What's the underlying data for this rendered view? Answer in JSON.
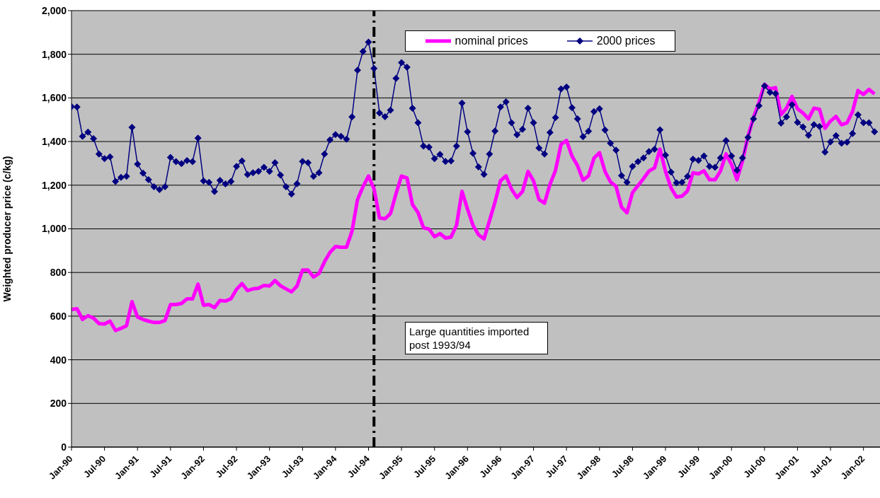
{
  "chart_data": {
    "type": "line",
    "ylabel": "Weighted producer price (c/kg)",
    "x": [
      "1990-01",
      "1990-02",
      "1990-03",
      "1990-04",
      "1990-05",
      "1990-06",
      "1990-07",
      "1990-08",
      "1990-09",
      "1990-10",
      "1990-11",
      "1990-12",
      "1991-01",
      "1991-02",
      "1991-03",
      "1991-04",
      "1991-05",
      "1991-06",
      "1991-07",
      "1991-08",
      "1991-09",
      "1991-10",
      "1991-11",
      "1991-12",
      "1992-01",
      "1992-02",
      "1992-03",
      "1992-04",
      "1992-05",
      "1992-06",
      "1992-07",
      "1992-08",
      "1992-09",
      "1992-10",
      "1992-11",
      "1992-12",
      "1993-01",
      "1993-02",
      "1993-03",
      "1993-04",
      "1993-05",
      "1993-06",
      "1993-07",
      "1993-08",
      "1993-09",
      "1993-10",
      "1993-11",
      "1993-12",
      "1994-01",
      "1994-02",
      "1994-03",
      "1994-04",
      "1994-05",
      "1994-06",
      "1994-07",
      "1994-08",
      "1994-09",
      "1994-10",
      "1994-11",
      "1994-12",
      "1995-01",
      "1995-02",
      "1995-03",
      "1995-04",
      "1995-05",
      "1995-06",
      "1995-07",
      "1995-08",
      "1995-09",
      "1995-10",
      "1995-11",
      "1995-12",
      "1996-01",
      "1996-02",
      "1996-03",
      "1996-04",
      "1996-05",
      "1996-06",
      "1996-07",
      "1996-08",
      "1996-09",
      "1996-10",
      "1996-11",
      "1996-12",
      "1997-01",
      "1997-02",
      "1997-03",
      "1997-04",
      "1997-05",
      "1997-06",
      "1997-07",
      "1997-08",
      "1997-09",
      "1997-10",
      "1997-11",
      "1997-12",
      "1998-01",
      "1998-02",
      "1998-03",
      "1998-04",
      "1998-05",
      "1998-06",
      "1998-07",
      "1998-08",
      "1998-09",
      "1998-10",
      "1998-11",
      "1998-12",
      "1999-01",
      "1999-02",
      "1999-03",
      "1999-04",
      "1999-05",
      "1999-06",
      "1999-07",
      "1999-08",
      "1999-09",
      "1999-10",
      "1999-11",
      "1999-12",
      "2000-01",
      "2000-02",
      "2000-03",
      "2000-04",
      "2000-05",
      "2000-06",
      "2000-07",
      "2000-08",
      "2000-09",
      "2000-10",
      "2000-11",
      "2000-12",
      "2001-01",
      "2001-02",
      "2001-03",
      "2001-04",
      "2001-05",
      "2001-06",
      "2001-07",
      "2001-08",
      "2001-09",
      "2001-10",
      "2001-11",
      "2001-12",
      "2002-01",
      "2002-02",
      "2002-03"
    ],
    "series": [
      {
        "name": "nominal prices",
        "color": "#ff00ff",
        "marker": "none",
        "values": [
          630,
          634,
          585,
          602,
          591,
          566,
          564,
          577,
          534,
          544,
          556,
          666,
          596,
          585,
          577,
          571,
          571,
          580,
          653,
          653,
          658,
          679,
          679,
          747,
          650,
          653,
          639,
          672,
          669,
          680,
          723,
          749,
          717,
          725,
          728,
          741,
          738,
          763,
          739,
          725,
          711,
          738,
          811,
          811,
          779,
          795,
          849,
          892,
          919,
          916,
          916,
          989,
          1134,
          1193,
          1242,
          1183,
          1050,
          1046,
          1070,
          1161,
          1242,
          1233,
          1111,
          1075,
          1005,
          999,
          964,
          978,
          958,
          962,
          1016,
          1172,
          1091,
          1016,
          973,
          954,
          1037,
          1123,
          1220,
          1243,
          1182,
          1144,
          1171,
          1263,
          1220,
          1134,
          1118,
          1204,
          1268,
          1387,
          1405,
          1333,
          1290,
          1223,
          1243,
          1324,
          1349,
          1263,
          1215,
          1195,
          1100,
          1074,
          1166,
          1198,
          1230,
          1265,
          1279,
          1365,
          1263,
          1188,
          1146,
          1150,
          1174,
          1257,
          1252,
          1266,
          1225,
          1225,
          1265,
          1343,
          1295,
          1225,
          1311,
          1424,
          1510,
          1580,
          1662,
          1641,
          1647,
          1523,
          1553,
          1607,
          1550,
          1531,
          1504,
          1553,
          1548,
          1461,
          1494,
          1515,
          1477,
          1486,
          1537,
          1634,
          1616,
          1639,
          1618
        ]
      },
      {
        "name": "2000 prices",
        "color": "#000080",
        "marker": "diamond",
        "values": [
          1560,
          1558,
          1424,
          1443,
          1413,
          1343,
          1322,
          1330,
          1217,
          1236,
          1241,
          1465,
          1297,
          1255,
          1225,
          1193,
          1180,
          1193,
          1327,
          1308,
          1299,
          1313,
          1308,
          1416,
          1220,
          1213,
          1171,
          1222,
          1206,
          1217,
          1286,
          1311,
          1249,
          1257,
          1263,
          1282,
          1263,
          1303,
          1246,
          1193,
          1160,
          1207,
          1309,
          1303,
          1241,
          1257,
          1343,
          1408,
          1432,
          1424,
          1411,
          1513,
          1727,
          1813,
          1856,
          1735,
          1531,
          1514,
          1544,
          1690,
          1762,
          1741,
          1553,
          1486,
          1379,
          1374,
          1322,
          1341,
          1309,
          1311,
          1379,
          1576,
          1445,
          1346,
          1284,
          1250,
          1343,
          1448,
          1558,
          1582,
          1486,
          1431,
          1456,
          1553,
          1486,
          1370,
          1343,
          1442,
          1510,
          1641,
          1650,
          1555,
          1504,
          1422,
          1447,
          1537,
          1550,
          1453,
          1392,
          1361,
          1244,
          1213,
          1286,
          1308,
          1325,
          1354,
          1365,
          1454,
          1338,
          1260,
          1211,
          1213,
          1241,
          1319,
          1314,
          1334,
          1286,
          1282,
          1325,
          1404,
          1334,
          1268,
          1325,
          1419,
          1504,
          1564,
          1655,
          1626,
          1620,
          1485,
          1513,
          1569,
          1488,
          1467,
          1429,
          1477,
          1469,
          1352,
          1399,
          1427,
          1392,
          1397,
          1437,
          1523,
          1486,
          1486,
          1445
        ]
      }
    ],
    "xlim": [
      "1990-01",
      "2002-04"
    ],
    "xticks": [
      {
        "value": "1990-01",
        "label": "Jan-90"
      },
      {
        "value": "1990-07",
        "label": "Jul-90"
      },
      {
        "value": "1991-01",
        "label": "Jan-91"
      },
      {
        "value": "1991-07",
        "label": "Jul-91"
      },
      {
        "value": "1992-01",
        "label": "Jan-92"
      },
      {
        "value": "1992-07",
        "label": "Jul-92"
      },
      {
        "value": "1993-01",
        "label": "Jan-93"
      },
      {
        "value": "1993-07",
        "label": "Jul-93"
      },
      {
        "value": "1994-01",
        "label": "Jan-94"
      },
      {
        "value": "1994-07",
        "label": "Jul-94"
      },
      {
        "value": "1995-01",
        "label": "Jan-95"
      },
      {
        "value": "1995-07",
        "label": "Jul-95"
      },
      {
        "value": "1996-01",
        "label": "Jan-96"
      },
      {
        "value": "1996-07",
        "label": "Jul-96"
      },
      {
        "value": "1997-01",
        "label": "Jan-97"
      },
      {
        "value": "1997-07",
        "label": "Jul-97"
      },
      {
        "value": "1998-01",
        "label": "Jan-98"
      },
      {
        "value": "1998-07",
        "label": "Jul-98"
      },
      {
        "value": "1999-01",
        "label": "Jan-99"
      },
      {
        "value": "1999-07",
        "label": "Jul-99"
      },
      {
        "value": "2000-01",
        "label": "Jan-00"
      },
      {
        "value": "2000-07",
        "label": "Jul-00"
      },
      {
        "value": "2001-01",
        "label": "Jan-01"
      },
      {
        "value": "2001-07",
        "label": "Jul-01"
      },
      {
        "value": "2002-01",
        "label": "Jan-02"
      }
    ],
    "ylim": [
      0,
      2000
    ],
    "yticks": [
      0,
      200,
      400,
      600,
      800,
      {
        "value": 1000,
        "label": "1,000"
      },
      {
        "value": 1200,
        "label": "1,200"
      },
      {
        "value": 1400,
        "label": "1,400"
      },
      {
        "value": 1600,
        "label": "1,600"
      },
      {
        "value": 1800,
        "label": "1,800"
      },
      {
        "value": 2000,
        "label": "2,000"
      }
    ],
    "ref_lines": [
      {
        "axis": "x",
        "value": "1994-08",
        "color": "#000000",
        "line_style": "dashed"
      }
    ],
    "annotations": [
      "Large quantities imported post 1993/94"
    ],
    "grid": "y",
    "legend": "top"
  }
}
